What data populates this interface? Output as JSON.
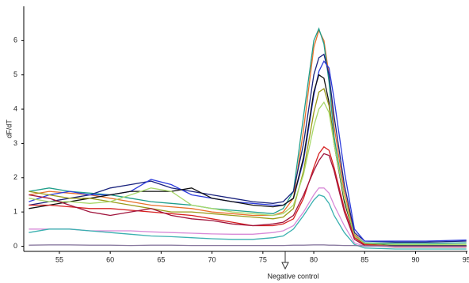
{
  "chart_data": {
    "type": "line",
    "ylabel": "dF/dT",
    "annotation": "Negative control",
    "x": [
      52,
      54,
      56,
      58,
      60,
      62,
      64,
      66,
      68,
      70,
      72,
      74,
      76,
      77,
      78,
      79,
      80,
      80.5,
      81,
      81.5,
      82,
      83,
      84,
      85,
      88,
      91,
      95
    ],
    "xlim": [
      51.5,
      95.1
    ],
    "xticks": [
      55,
      60,
      65,
      70,
      75,
      80,
      85,
      90,
      95
    ],
    "ylim": [
      -0.15,
      7
    ],
    "yticks": [
      0,
      1,
      2,
      3,
      4,
      5,
      6
    ],
    "grid": false,
    "series": [
      {
        "color": "#e8702a",
        "values": [
          1.5,
          1.6,
          1.55,
          1.5,
          1.4,
          1.3,
          1.2,
          1.15,
          1.1,
          1.0,
          0.95,
          0.9,
          0.9,
          1.0,
          1.4,
          3.4,
          5.8,
          6.3,
          6.0,
          5.0,
          3.5,
          1.6,
          0.35,
          0.08,
          0.05,
          0.03,
          0.02
        ]
      },
      {
        "color": "#1f9e8a",
        "values": [
          1.6,
          1.7,
          1.6,
          1.55,
          1.5,
          1.4,
          1.3,
          1.25,
          1.2,
          1.1,
          1.05,
          1.0,
          0.95,
          1.1,
          1.6,
          3.8,
          6.0,
          6.35,
          5.9,
          4.8,
          3.2,
          1.4,
          0.3,
          0.1,
          0.08,
          0.08,
          0.1
        ]
      },
      {
        "color": "#1a237e",
        "values": [
          1.2,
          1.3,
          1.4,
          1.5,
          1.7,
          1.8,
          1.9,
          1.7,
          1.6,
          1.5,
          1.4,
          1.3,
          1.25,
          1.3,
          1.6,
          3.0,
          5.0,
          5.5,
          5.6,
          5.0,
          3.8,
          1.8,
          0.4,
          0.15,
          0.12,
          0.12,
          0.15
        ]
      },
      {
        "color": "#2d3cdc",
        "values": [
          1.3,
          1.5,
          1.6,
          1.5,
          1.5,
          1.6,
          1.95,
          1.8,
          1.5,
          1.4,
          1.3,
          1.25,
          1.2,
          1.2,
          1.4,
          2.5,
          4.4,
          5.1,
          5.4,
          5.2,
          4.3,
          2.2,
          0.5,
          0.15,
          0.15,
          0.15,
          0.18
        ]
      },
      {
        "color": "#111111",
        "values": [
          1.1,
          1.2,
          1.3,
          1.4,
          1.5,
          1.6,
          1.6,
          1.6,
          1.7,
          1.4,
          1.3,
          1.2,
          1.15,
          1.2,
          1.4,
          2.6,
          4.5,
          5.0,
          4.9,
          4.2,
          3.0,
          1.3,
          0.3,
          0.05,
          0.02,
          0.02,
          0.02
        ]
      },
      {
        "color": "#9a9a1a",
        "values": [
          1.6,
          1.5,
          1.4,
          1.4,
          1.3,
          1.2,
          1.1,
          1.0,
          1.0,
          0.95,
          0.9,
          0.85,
          0.8,
          0.85,
          1.1,
          2.2,
          3.9,
          4.5,
          4.6,
          4.1,
          3.0,
          1.4,
          0.3,
          0.05,
          0.0,
          0.0,
          0.0
        ]
      },
      {
        "color": "#a8d86a",
        "values": [
          1.4,
          1.3,
          1.3,
          1.25,
          1.3,
          1.5,
          1.7,
          1.6,
          1.2,
          1.1,
          1.0,
          0.95,
          0.9,
          0.95,
          1.2,
          2.1,
          3.5,
          4.0,
          4.2,
          3.9,
          3.0,
          1.4,
          0.3,
          0.08,
          0.05,
          0.05,
          0.05
        ]
      },
      {
        "color": "#d62020",
        "values": [
          1.2,
          1.2,
          1.15,
          1.1,
          1.1,
          1.05,
          1.0,
          0.95,
          0.9,
          0.8,
          0.7,
          0.6,
          0.6,
          0.65,
          0.8,
          1.4,
          2.3,
          2.7,
          2.9,
          2.8,
          2.3,
          1.1,
          0.25,
          0.05,
          0.0,
          0.0,
          0.0
        ]
      },
      {
        "color": "#a0143c",
        "values": [
          1.5,
          1.4,
          1.2,
          1.0,
          0.9,
          1.0,
          1.1,
          0.9,
          0.8,
          0.75,
          0.65,
          0.6,
          0.65,
          0.7,
          0.9,
          1.5,
          2.2,
          2.5,
          2.7,
          2.65,
          2.2,
          1.0,
          0.2,
          0.02,
          -0.02,
          -0.02,
          -0.02
        ]
      },
      {
        "color": "#d88ad8",
        "values": [
          0.5,
          0.5,
          0.5,
          0.45,
          0.45,
          0.45,
          0.42,
          0.4,
          0.38,
          0.36,
          0.35,
          0.35,
          0.4,
          0.45,
          0.6,
          1.0,
          1.5,
          1.7,
          1.7,
          1.55,
          1.2,
          0.6,
          0.1,
          0.0,
          0.0,
          0.0,
          0.0
        ]
      },
      {
        "color": "#3ab0b0",
        "values": [
          0.4,
          0.5,
          0.5,
          0.45,
          0.4,
          0.35,
          0.3,
          0.28,
          0.25,
          0.22,
          0.2,
          0.2,
          0.25,
          0.3,
          0.5,
          0.9,
          1.35,
          1.5,
          1.45,
          1.25,
          0.9,
          0.4,
          0.05,
          -0.05,
          -0.08,
          -0.08,
          -0.08
        ]
      },
      {
        "color": "#8a7aa0",
        "values": [
          0.03,
          0.04,
          0.04,
          0.03,
          0.03,
          0.02,
          0.03,
          0.03,
          0.02,
          0.02,
          0.02,
          0.02,
          0.02,
          0.02,
          0.03,
          0.03,
          0.04,
          0.04,
          0.04,
          0.03,
          0.03,
          0.02,
          0.02,
          0.01,
          0.01,
          0.01,
          0.01
        ]
      }
    ]
  }
}
